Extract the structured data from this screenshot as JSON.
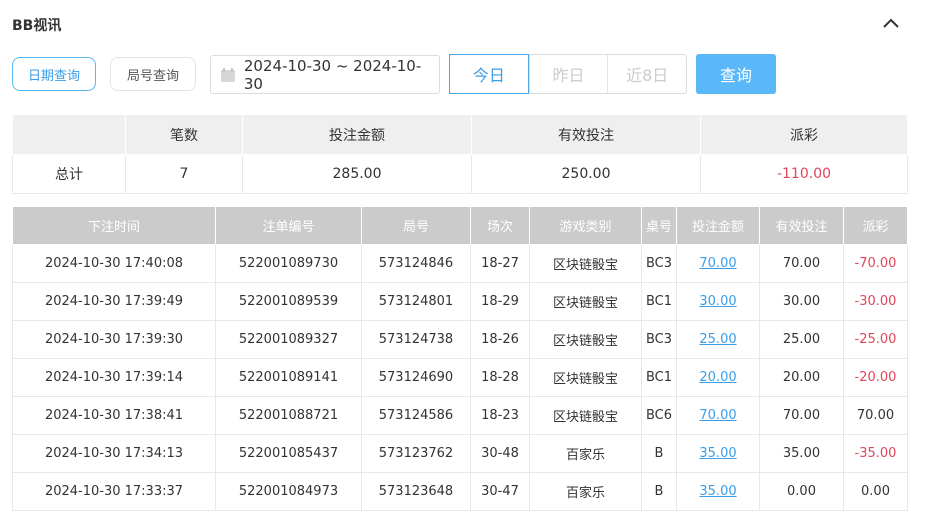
{
  "title": "BB视讯",
  "tabs": {
    "date_query": "日期查询",
    "round_query": "局号查询"
  },
  "date_range": "2024-10-30 ~ 2024-10-30",
  "quick": [
    "今日",
    "昨日",
    "近8日"
  ],
  "query_label": "查询",
  "colors": {
    "accent": "#5bb8f8",
    "negative": "#e0455a",
    "link": "#3a9ee8"
  },
  "summary": {
    "headers": [
      "",
      "笔数",
      "投注金额",
      "有效投注",
      "派彩"
    ],
    "row": [
      "总计",
      "7",
      "285.00",
      "250.00",
      "-110.00"
    ]
  },
  "details": {
    "headers": [
      "下注时间",
      "注单编号",
      "局号",
      "场次",
      "游戏类别",
      "桌号",
      "投注金额",
      "有效投注",
      "派彩"
    ],
    "rows": [
      [
        "2024-10-30 17:40:08",
        "522001089730",
        "573124846",
        "18-27",
        "区块链骰宝",
        "BC3",
        "70.00",
        "70.00",
        "-70.00"
      ],
      [
        "2024-10-30 17:39:49",
        "522001089539",
        "573124801",
        "18-29",
        "区块链骰宝",
        "BC1",
        "30.00",
        "30.00",
        "-30.00"
      ],
      [
        "2024-10-30 17:39:30",
        "522001089327",
        "573124738",
        "18-26",
        "区块链骰宝",
        "BC3",
        "25.00",
        "25.00",
        "-25.00"
      ],
      [
        "2024-10-30 17:39:14",
        "522001089141",
        "573124690",
        "18-28",
        "区块链骰宝",
        "BC1",
        "20.00",
        "20.00",
        "-20.00"
      ],
      [
        "2024-10-30 17:38:41",
        "522001088721",
        "573124586",
        "18-23",
        "区块链骰宝",
        "BC6",
        "70.00",
        "70.00",
        "70.00"
      ],
      [
        "2024-10-30 17:34:13",
        "522001085437",
        "573123762",
        "30-48",
        "百家乐",
        "B",
        "35.00",
        "35.00",
        "-35.00"
      ],
      [
        "2024-10-30 17:33:37",
        "522001084973",
        "573123648",
        "30-47",
        "百家乐",
        "B",
        "35.00",
        "0.00",
        "0.00"
      ]
    ]
  }
}
